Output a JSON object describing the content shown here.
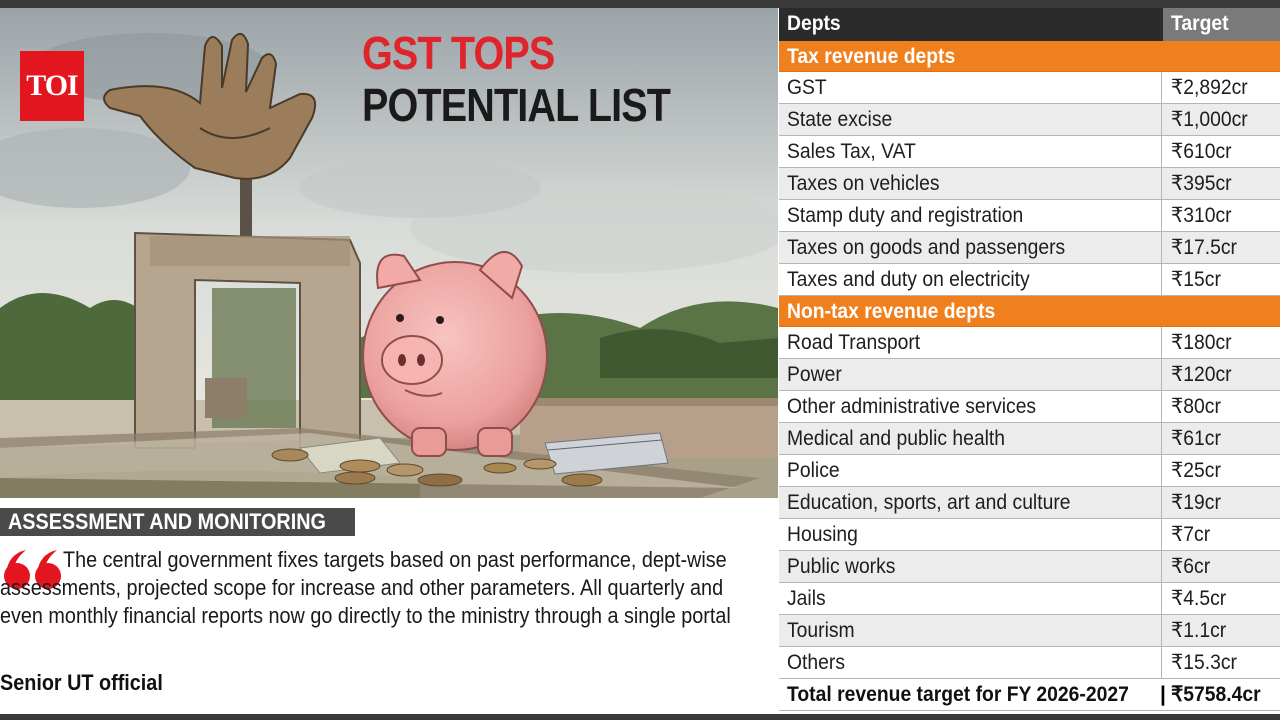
{
  "logo": "TOI",
  "headline": {
    "line1": "GST TOPS",
    "line2": "POTENTIAL LIST"
  },
  "quote_section": {
    "heading": "ASSESSMENT AND MONITORING",
    "quote": "The central government fixes targets based on past performance, dept-wise assessments, projected scope for increase and other parameters. All quarterly and even monthly financial reports now go directly to the ministry through a single portal",
    "attribution": "Senior UT official"
  },
  "table": {
    "headers": {
      "dept": "Depts",
      "target": "Target"
    },
    "tax_section": {
      "label": "Tax revenue depts",
      "rows": [
        {
          "dept": "GST",
          "target": "₹2,892cr"
        },
        {
          "dept": "State excise",
          "target": "₹1,000cr"
        },
        {
          "dept": "Sales Tax, VAT",
          "target": "₹610cr"
        },
        {
          "dept": "Taxes on vehicles",
          "target": "₹395cr"
        },
        {
          "dept": "Stamp duty and registration",
          "target": "₹310cr"
        },
        {
          "dept": "Taxes on goods and passengers",
          "target": "₹17.5cr"
        },
        {
          "dept": "Taxes and duty on electricity",
          "target": "₹15cr"
        }
      ]
    },
    "nontax_section": {
      "label": "Non-tax revenue depts",
      "rows": [
        {
          "dept": "Road Transport",
          "target": "₹180cr"
        },
        {
          "dept": "Power",
          "target": "₹120cr"
        },
        {
          "dept": "Other administrative services",
          "target": "₹80cr"
        },
        {
          "dept": "Medical and public health",
          "target": "₹61cr"
        },
        {
          "dept": "Police",
          "target": "₹25cr"
        },
        {
          "dept": "Education, sports, art and culture",
          "target": "₹19cr"
        },
        {
          "dept": "Housing",
          "target": "₹7cr"
        },
        {
          "dept": "Public works",
          "target": "₹6cr"
        },
        {
          "dept": "Jails",
          "target": "₹4.5cr"
        },
        {
          "dept": "Tourism",
          "target": "₹1.1cr"
        },
        {
          "dept": "Others",
          "target": "₹15.3cr"
        }
      ]
    },
    "total": {
      "label": "Total revenue target for FY 2026-2027",
      "separator": "|",
      "value": "₹5758.4cr"
    }
  },
  "colors": {
    "accent_orange": "#f07f1e",
    "logo_red": "#e3161f",
    "headline_red": "#e0242b",
    "header_dark": "#2b2b2b",
    "header_grey": "#7a7a7a"
  },
  "icons": [
    "open-hand-monument-icon",
    "piggy-bank-icon",
    "quote-marks-icon"
  ]
}
